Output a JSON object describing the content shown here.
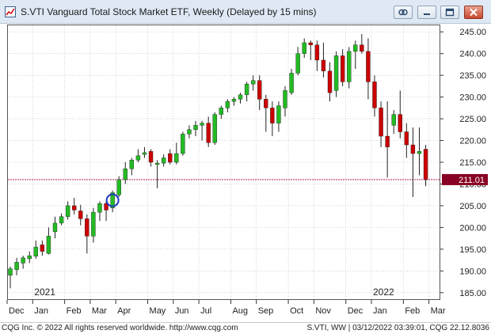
{
  "window": {
    "title": "S.VTI    Vanguard Total Stock Market ETF, Weekly (Delayed by 15 mins)",
    "icon": "chart-app-icon",
    "buttons": [
      "link-icon",
      "restore-icon",
      "maximize-icon",
      "close-icon"
    ]
  },
  "footer": {
    "left": "CQG Inc. © 2022 All rights reserved worldwide. http://www.cqg.com",
    "right": "S.VTI, WW | 03/12/2022 03:39:01, CQG 22.12.8036"
  },
  "colors": {
    "up": "#22bb22",
    "down": "#cc0000",
    "price_line": "#aa0044",
    "price_label_bg": "#880022",
    "marker": "#1f3fbf"
  },
  "chart_data": {
    "type": "candlestick",
    "symbol": "S.VTI",
    "interval": "Weekly",
    "ylim": [
      183.5,
      246.5
    ],
    "y_ticks": [
      "245.00",
      "240.00",
      "235.00",
      "230.00",
      "225.00",
      "220.00",
      "215.00",
      "210.00",
      "205.00",
      "200.00",
      "195.00",
      "190.00",
      "185.00"
    ],
    "x_month_labels": [
      "Dec",
      "Jan",
      "Feb",
      "Mar",
      "Apr",
      "May",
      "Jun",
      "Jul",
      "Aug",
      "Sep",
      "Oct",
      "Nov",
      "Dec",
      "Jan",
      "Feb",
      "Mar"
    ],
    "x_month_start_index": [
      0,
      4,
      9,
      13,
      17,
      22,
      26,
      30,
      35,
      39,
      44,
      48,
      53,
      57,
      62,
      66
    ],
    "year_labels": [
      {
        "label": "2021",
        "index": 4
      },
      {
        "label": "2022",
        "index": 57
      }
    ],
    "last_price": 211.01,
    "last_price_label": "211.01",
    "marked_index": 16,
    "candles": [
      {
        "o": 189.0,
        "h": 191.0,
        "l": 186.0,
        "c": 190.5
      },
      {
        "o": 190.3,
        "h": 193.0,
        "l": 189.0,
        "c": 192.0
      },
      {
        "o": 191.8,
        "h": 193.5,
        "l": 190.5,
        "c": 193.0
      },
      {
        "o": 192.8,
        "h": 194.5,
        "l": 191.8,
        "c": 193.5
      },
      {
        "o": 193.4,
        "h": 197.0,
        "l": 192.8,
        "c": 195.5
      },
      {
        "o": 196.0,
        "h": 197.0,
        "l": 193.5,
        "c": 194.5
      },
      {
        "o": 194.0,
        "h": 200.0,
        "l": 193.8,
        "c": 198.0
      },
      {
        "o": 199.0,
        "h": 202.5,
        "l": 197.5,
        "c": 201.0
      },
      {
        "o": 201.0,
        "h": 203.2,
        "l": 200.5,
        "c": 202.5
      },
      {
        "o": 202.5,
        "h": 206.0,
        "l": 201.8,
        "c": 205.0
      },
      {
        "o": 205.0,
        "h": 206.8,
        "l": 203.0,
        "c": 204.0
      },
      {
        "o": 203.8,
        "h": 205.2,
        "l": 200.5,
        "c": 202.0
      },
      {
        "o": 202.0,
        "h": 203.0,
        "l": 194.0,
        "c": 198.0
      },
      {
        "o": 198.0,
        "h": 204.5,
        "l": 196.5,
        "c": 203.5
      },
      {
        "o": 203.5,
        "h": 206.0,
        "l": 201.5,
        "c": 205.5
      },
      {
        "o": 205.5,
        "h": 206.0,
        "l": 201.5,
        "c": 204.0
      },
      {
        "o": 204.5,
        "h": 208.5,
        "l": 203.5,
        "c": 208.0
      },
      {
        "o": 207.5,
        "h": 211.8,
        "l": 207.0,
        "c": 211.0
      },
      {
        "o": 211.0,
        "h": 215.0,
        "l": 210.0,
        "c": 213.5
      },
      {
        "o": 213.5,
        "h": 216.0,
        "l": 212.0,
        "c": 215.5
      },
      {
        "o": 215.5,
        "h": 218.0,
        "l": 215.0,
        "c": 216.5
      },
      {
        "o": 216.8,
        "h": 218.5,
        "l": 216.0,
        "c": 217.2
      },
      {
        "o": 217.5,
        "h": 218.0,
        "l": 214.0,
        "c": 215.0
      },
      {
        "o": 214.5,
        "h": 215.5,
        "l": 209.0,
        "c": 214.8
      },
      {
        "o": 214.8,
        "h": 216.8,
        "l": 214.0,
        "c": 216.0
      },
      {
        "o": 217.0,
        "h": 218.0,
        "l": 214.5,
        "c": 215.0
      },
      {
        "o": 215.0,
        "h": 219.5,
        "l": 214.5,
        "c": 217.0
      },
      {
        "o": 217.0,
        "h": 222.0,
        "l": 216.5,
        "c": 221.5
      },
      {
        "o": 221.5,
        "h": 223.5,
        "l": 220.5,
        "c": 222.5
      },
      {
        "o": 222.5,
        "h": 224.5,
        "l": 221.0,
        "c": 223.5
      },
      {
        "o": 223.5,
        "h": 224.5,
        "l": 220.0,
        "c": 224.0
      },
      {
        "o": 224.0,
        "h": 225.5,
        "l": 218.5,
        "c": 219.5
      },
      {
        "o": 219.5,
        "h": 226.5,
        "l": 219.0,
        "c": 226.0
      },
      {
        "o": 226.0,
        "h": 228.0,
        "l": 225.0,
        "c": 227.5
      },
      {
        "o": 227.5,
        "h": 229.5,
        "l": 226.5,
        "c": 229.0
      },
      {
        "o": 229.0,
        "h": 230.0,
        "l": 228.0,
        "c": 229.5
      },
      {
        "o": 229.5,
        "h": 231.0,
        "l": 228.5,
        "c": 230.5
      },
      {
        "o": 230.5,
        "h": 233.5,
        "l": 229.0,
        "c": 233.0
      },
      {
        "o": 233.0,
        "h": 235.0,
        "l": 231.5,
        "c": 233.8
      },
      {
        "o": 233.8,
        "h": 235.0,
        "l": 227.0,
        "c": 229.5
      },
      {
        "o": 229.5,
        "h": 230.5,
        "l": 222.0,
        "c": 227.5
      },
      {
        "o": 227.5,
        "h": 229.0,
        "l": 221.0,
        "c": 224.0
      },
      {
        "o": 224.0,
        "h": 229.0,
        "l": 222.0,
        "c": 228.0
      },
      {
        "o": 227.5,
        "h": 232.5,
        "l": 225.5,
        "c": 231.5
      },
      {
        "o": 231.0,
        "h": 236.5,
        "l": 230.5,
        "c": 235.5
      },
      {
        "o": 235.5,
        "h": 241.5,
        "l": 235.0,
        "c": 240.0
      },
      {
        "o": 240.0,
        "h": 243.5,
        "l": 239.0,
        "c": 242.5
      },
      {
        "o": 242.5,
        "h": 243.0,
        "l": 238.5,
        "c": 242.0
      },
      {
        "o": 242.0,
        "h": 243.0,
        "l": 236.0,
        "c": 238.5
      },
      {
        "o": 238.5,
        "h": 242.5,
        "l": 234.5,
        "c": 236.0
      },
      {
        "o": 236.0,
        "h": 238.0,
        "l": 229.0,
        "c": 231.0
      },
      {
        "o": 231.5,
        "h": 240.5,
        "l": 230.0,
        "c": 239.5
      },
      {
        "o": 239.5,
        "h": 241.0,
        "l": 232.5,
        "c": 233.5
      },
      {
        "o": 233.5,
        "h": 241.5,
        "l": 232.0,
        "c": 240.5
      },
      {
        "o": 240.5,
        "h": 243.0,
        "l": 236.5,
        "c": 242.0
      },
      {
        "o": 242.0,
        "h": 244.5,
        "l": 240.0,
        "c": 240.5
      },
      {
        "o": 240.5,
        "h": 243.5,
        "l": 229.5,
        "c": 233.5
      },
      {
        "o": 233.5,
        "h": 235.0,
        "l": 225.5,
        "c": 227.5
      },
      {
        "o": 227.5,
        "h": 229.0,
        "l": 218.5,
        "c": 221.0
      },
      {
        "o": 221.0,
        "h": 229.0,
        "l": 211.5,
        "c": 218.5
      },
      {
        "o": 223.5,
        "h": 227.0,
        "l": 221.5,
        "c": 226.0
      },
      {
        "o": 226.0,
        "h": 231.5,
        "l": 220.5,
        "c": 222.0
      },
      {
        "o": 222.0,
        "h": 224.0,
        "l": 216.0,
        "c": 219.0
      },
      {
        "o": 219.0,
        "h": 223.0,
        "l": 207.0,
        "c": 217.0
      },
      {
        "o": 217.0,
        "h": 223.0,
        "l": 212.0,
        "c": 217.5
      },
      {
        "o": 218.0,
        "h": 219.0,
        "l": 209.5,
        "c": 211.0
      }
    ]
  }
}
